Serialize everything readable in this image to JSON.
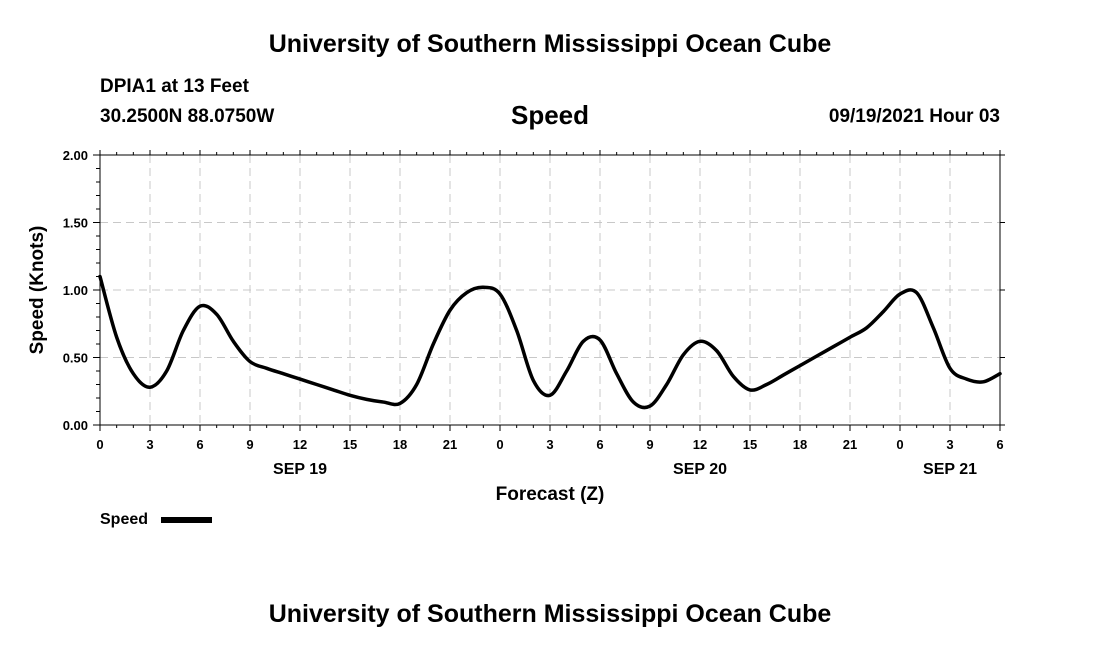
{
  "header": {
    "title": "University of Southern Mississippi Ocean Cube",
    "station": "DPIA1 at 13 Feet",
    "coords": "30.2500N  88.0750W",
    "variable": "Speed",
    "date": "09/19/2021 Hour 03",
    "footer_title": "University of Southern Mississippi Ocean Cube"
  },
  "colors": {
    "line": "#000000",
    "grid": "#c8c8c8",
    "axis": "#000000"
  },
  "chart_data": {
    "type": "line",
    "title": "Speed",
    "xlabel": "Forecast (Z)",
    "ylabel": "Speed (Knots)",
    "grid": true,
    "legend": "bottom-left",
    "xlim": [
      0,
      54
    ],
    "ylim": [
      0,
      2
    ],
    "x_ticks": [
      0,
      3,
      6,
      9,
      12,
      15,
      18,
      21,
      24,
      27,
      30,
      33,
      36,
      39,
      42,
      45,
      48,
      51,
      54
    ],
    "x_tick_labels": [
      "0",
      "3",
      "6",
      "9",
      "12",
      "15",
      "18",
      "21",
      "0",
      "3",
      "6",
      "9",
      "12",
      "15",
      "18",
      "21",
      "0",
      "3",
      "6"
    ],
    "y_ticks": [
      0,
      0.5,
      1.0,
      1.5,
      2.0
    ],
    "y_tick_labels": [
      "0.00",
      "0.50",
      "1.00",
      "1.50",
      "2.00"
    ],
    "date_labels": [
      {
        "hour": 12,
        "label": "SEP 19"
      },
      {
        "hour": 36,
        "label": "SEP 20"
      },
      {
        "hour": 51,
        "label": "SEP 21"
      }
    ],
    "series": [
      {
        "name": "Speed",
        "x": [
          0,
          1,
          2,
          3,
          4,
          5,
          6,
          7,
          8,
          9,
          10,
          11,
          12,
          13,
          14,
          15,
          16,
          17,
          18,
          19,
          20,
          21,
          22,
          23,
          24,
          25,
          26,
          27,
          28,
          29,
          30,
          31,
          32,
          33,
          34,
          35,
          36,
          37,
          38,
          39,
          40,
          41,
          42,
          43,
          44,
          45,
          46,
          47,
          48,
          49,
          50,
          51,
          52,
          53,
          54
        ],
        "values": [
          1.1,
          0.65,
          0.38,
          0.28,
          0.4,
          0.7,
          0.88,
          0.82,
          0.62,
          0.47,
          0.42,
          0.38,
          0.34,
          0.3,
          0.26,
          0.22,
          0.19,
          0.17,
          0.16,
          0.3,
          0.6,
          0.85,
          0.98,
          1.02,
          0.97,
          0.7,
          0.33,
          0.22,
          0.4,
          0.62,
          0.63,
          0.38,
          0.17,
          0.14,
          0.3,
          0.52,
          0.62,
          0.55,
          0.36,
          0.26,
          0.3,
          0.37,
          0.44,
          0.51,
          0.58,
          0.65,
          0.72,
          0.84,
          0.97,
          0.98,
          0.72,
          0.42,
          0.34,
          0.32,
          0.38
        ]
      }
    ]
  }
}
